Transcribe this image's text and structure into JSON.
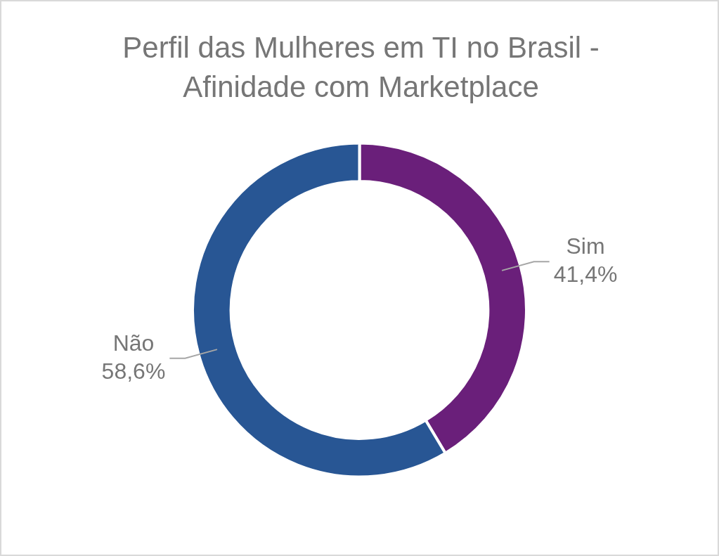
{
  "chart_data": {
    "type": "donut",
    "title": "Perfil das Mulheres em TI no Brasil - Afinidade com Marketplace",
    "categories": [
      "Sim",
      "Não"
    ],
    "values": [
      41.4,
      58.6
    ],
    "colors": [
      "#6a1f7a",
      "#285694"
    ],
    "value_labels": [
      "41,4%",
      "58,6%"
    ],
    "legend": false
  }
}
